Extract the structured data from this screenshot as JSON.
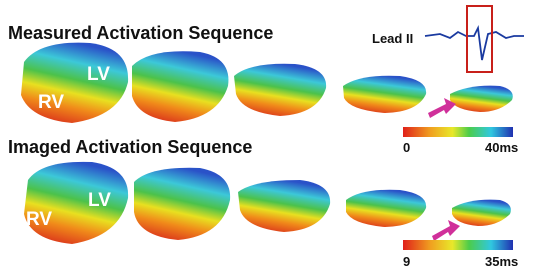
{
  "panels": [
    {
      "title": "Measured Activation Sequence",
      "lv": "LV",
      "rv": "RV",
      "scale_min": "0",
      "scale_max": "40ms"
    },
    {
      "title": "Imaged Activation Sequence",
      "lv": "LV",
      "rv": "RV",
      "scale_min": "9",
      "scale_max": "35ms"
    }
  ],
  "ecg": {
    "label": "Lead II"
  }
}
